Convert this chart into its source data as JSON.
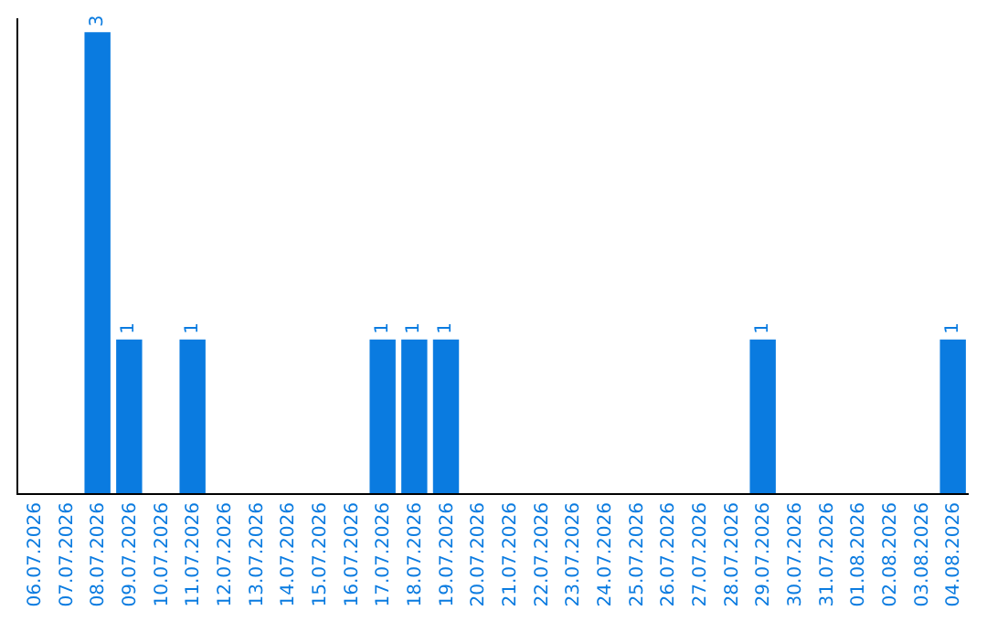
{
  "chart_data": {
    "type": "bar",
    "categories": [
      "06.07.2026",
      "07.07.2026",
      "08.07.2026",
      "09.07.2026",
      "10.07.2026",
      "11.07.2026",
      "12.07.2026",
      "13.07.2026",
      "14.07.2026",
      "15.07.2026",
      "16.07.2026",
      "17.07.2026",
      "18.07.2026",
      "19.07.2026",
      "20.07.2026",
      "21.07.2026",
      "22.07.2026",
      "23.07.2026",
      "24.07.2026",
      "25.07.2026",
      "26.07.2026",
      "27.07.2026",
      "28.07.2026",
      "29.07.2026",
      "30.07.2026",
      "31.07.2026",
      "01.08.2026",
      "02.08.2026",
      "03.08.2026",
      "04.08.2026"
    ],
    "values": [
      0,
      0,
      3,
      1,
      0,
      1,
      0,
      0,
      0,
      0,
      0,
      1,
      1,
      1,
      0,
      0,
      0,
      0,
      0,
      0,
      0,
      0,
      0,
      1,
      0,
      0,
      0,
      0,
      0,
      1
    ],
    "value_labels": [
      null,
      null,
      "3",
      "1",
      null,
      "1",
      null,
      null,
      null,
      null,
      null,
      "1",
      "1",
      "1",
      null,
      null,
      null,
      null,
      null,
      null,
      null,
      null,
      null,
      "1",
      null,
      null,
      null,
      null,
      null,
      "1"
    ],
    "color": "#0a7be0",
    "tick_labels": "x",
    "grid": false,
    "legend": false
  }
}
